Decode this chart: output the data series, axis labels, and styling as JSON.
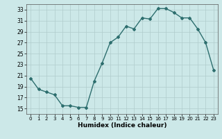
{
  "x": [
    0,
    1,
    2,
    3,
    4,
    5,
    6,
    7,
    8,
    9,
    10,
    11,
    12,
    13,
    14,
    15,
    16,
    17,
    18,
    19,
    20,
    21,
    22,
    23
  ],
  "y": [
    20.5,
    18.5,
    18.0,
    17.5,
    15.5,
    15.5,
    15.2,
    15.2,
    20.0,
    23.3,
    27.0,
    28.0,
    30.0,
    29.5,
    31.5,
    31.3,
    33.2,
    33.2,
    32.5,
    31.5,
    31.5,
    29.5,
    27.0,
    22.0
  ],
  "xlabel": "Humidex (Indice chaleur)",
  "xlim": [
    -0.5,
    23.5
  ],
  "ylim": [
    14,
    34
  ],
  "yticks": [
    15,
    17,
    19,
    21,
    23,
    25,
    27,
    29,
    31,
    33
  ],
  "xticks": [
    0,
    1,
    2,
    3,
    4,
    5,
    6,
    7,
    8,
    9,
    10,
    11,
    12,
    13,
    14,
    15,
    16,
    17,
    18,
    19,
    20,
    21,
    22,
    23
  ],
  "line_color": "#2d6e6e",
  "marker": "D",
  "marker_size": 2.0,
  "bg_color": "#cce8e8",
  "grid_color": "#b0cccc",
  "line_width": 1.0
}
